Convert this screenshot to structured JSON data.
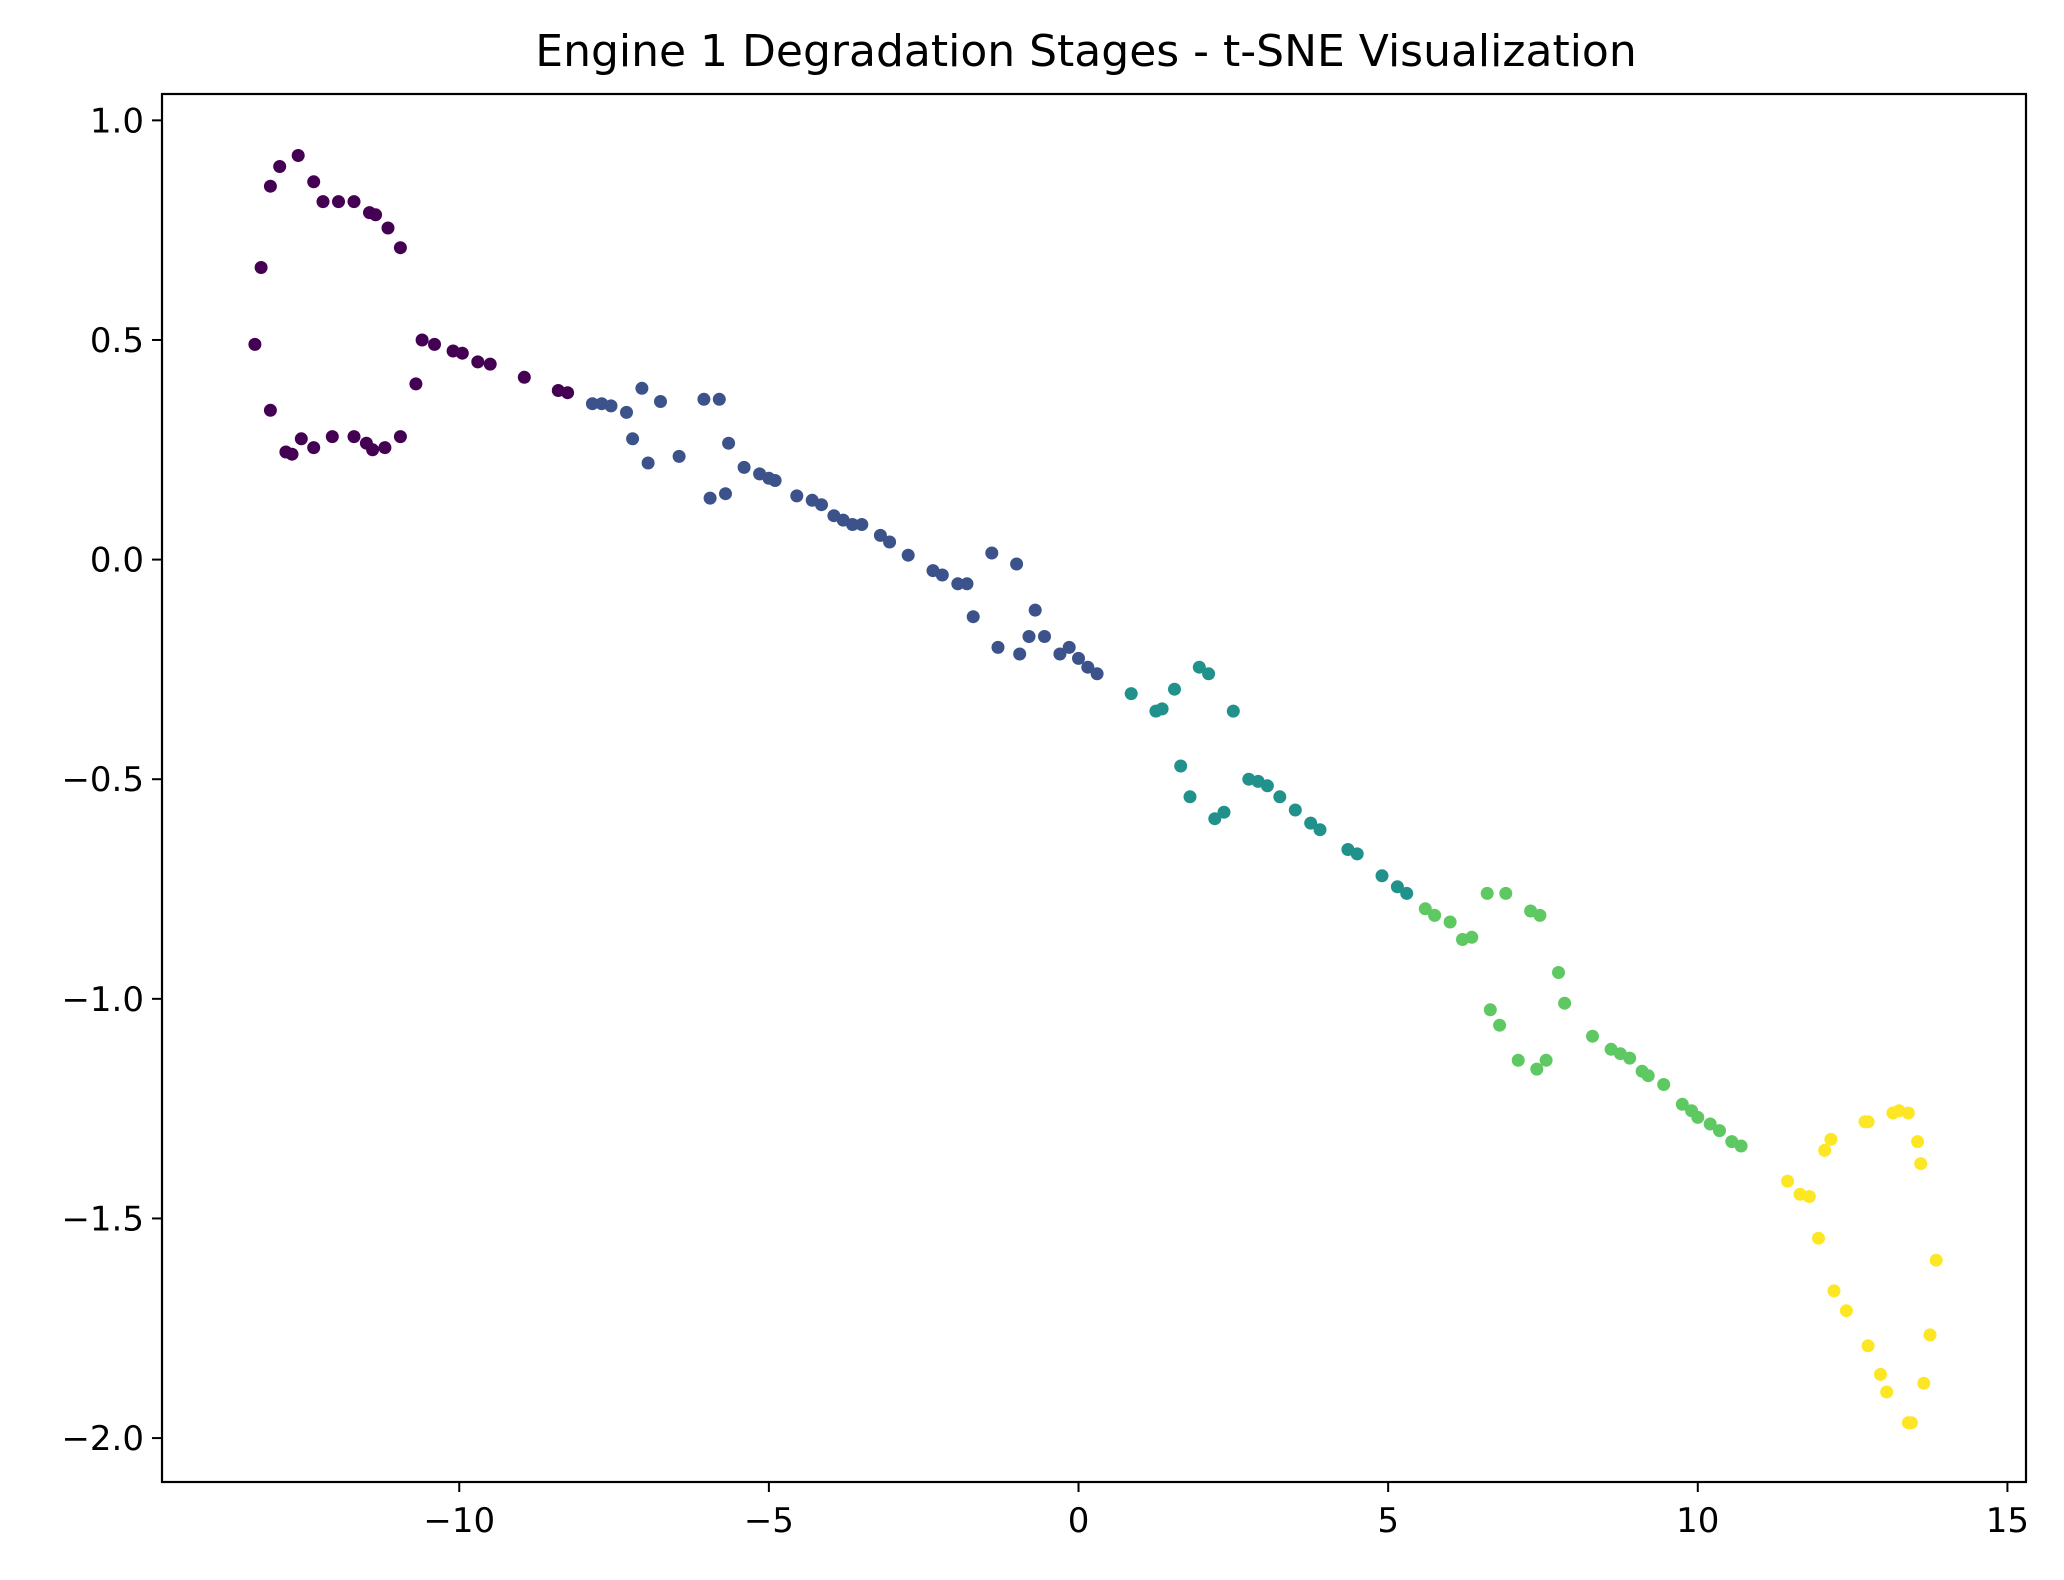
{
  "chart_data": {
    "type": "scatter",
    "title": "Engine 1 Degradation Stages - t-SNE Visualization",
    "xlabel": "",
    "ylabel": "",
    "xlim": [
      -14.8,
      15.3
    ],
    "ylim": [
      -2.1,
      1.06
    ],
    "x_ticks": [
      -10,
      -5,
      0,
      5,
      10,
      15
    ],
    "x_tick_labels": [
      "−10",
      "−5",
      "0",
      "5",
      "10",
      "15"
    ],
    "y_ticks": [
      1.0,
      0.5,
      0.0,
      -0.5,
      -1.0,
      -1.5,
      -2.0
    ],
    "y_tick_labels": [
      "1.0",
      "0.5",
      "0.0",
      "−0.5",
      "−1.0",
      "−1.5",
      "−2.0"
    ],
    "grid": false,
    "series": [
      {
        "color": "#440154",
        "points": [
          [
            -13.3,
            0.49
          ],
          [
            -13.2,
            0.665
          ],
          [
            -13.05,
            0.85
          ],
          [
            -12.9,
            0.895
          ],
          [
            -12.6,
            0.92
          ],
          [
            -12.35,
            0.86
          ],
          [
            -12.2,
            0.815
          ],
          [
            -11.95,
            0.815
          ],
          [
            -11.7,
            0.815
          ],
          [
            -11.45,
            0.79
          ],
          [
            -11.35,
            0.785
          ],
          [
            -11.15,
            0.755
          ],
          [
            -10.95,
            0.71
          ],
          [
            -13.05,
            0.34
          ],
          [
            -12.8,
            0.245
          ],
          [
            -12.7,
            0.24
          ],
          [
            -12.55,
            0.275
          ],
          [
            -12.35,
            0.255
          ],
          [
            -12.05,
            0.28
          ],
          [
            -11.7,
            0.28
          ],
          [
            -11.5,
            0.265
          ],
          [
            -11.4,
            0.25
          ],
          [
            -11.2,
            0.255
          ],
          [
            -10.95,
            0.28
          ],
          [
            -10.7,
            0.4
          ],
          [
            -10.6,
            0.5
          ],
          [
            -10.4,
            0.49
          ],
          [
            -10.1,
            0.475
          ],
          [
            -9.95,
            0.47
          ],
          [
            -9.7,
            0.45
          ],
          [
            -9.5,
            0.445
          ],
          [
            -8.95,
            0.415
          ],
          [
            -8.4,
            0.385
          ],
          [
            -8.25,
            0.38
          ]
        ]
      },
      {
        "color": "#3b528b",
        "points": [
          [
            -7.85,
            0.355
          ],
          [
            -7.7,
            0.355
          ],
          [
            -7.55,
            0.35
          ],
          [
            -7.3,
            0.335
          ],
          [
            -7.05,
            0.39
          ],
          [
            -6.75,
            0.36
          ],
          [
            -7.2,
            0.275
          ],
          [
            -6.95,
            0.22
          ],
          [
            -6.45,
            0.235
          ],
          [
            -6.05,
            0.365
          ],
          [
            -5.8,
            0.365
          ],
          [
            -5.65,
            0.265
          ],
          [
            -5.95,
            0.14
          ],
          [
            -5.7,
            0.15
          ],
          [
            -5.4,
            0.21
          ],
          [
            -5.15,
            0.195
          ],
          [
            -5.0,
            0.185
          ],
          [
            -4.9,
            0.18
          ],
          [
            -4.55,
            0.145
          ],
          [
            -4.3,
            0.135
          ],
          [
            -4.15,
            0.125
          ],
          [
            -3.95,
            0.1
          ],
          [
            -3.8,
            0.09
          ],
          [
            -3.65,
            0.08
          ],
          [
            -3.5,
            0.08
          ],
          [
            -3.2,
            0.055
          ],
          [
            -3.05,
            0.04
          ],
          [
            -2.75,
            0.01
          ],
          [
            -2.35,
            -0.025
          ],
          [
            -2.2,
            -0.035
          ],
          [
            -1.95,
            -0.055
          ],
          [
            -1.8,
            -0.055
          ],
          [
            -1.7,
            -0.13
          ],
          [
            -1.4,
            0.015
          ],
          [
            -1.0,
            -0.01
          ],
          [
            -1.3,
            -0.2
          ],
          [
            -0.95,
            -0.215
          ],
          [
            -0.8,
            -0.175
          ],
          [
            -0.7,
            -0.115
          ],
          [
            -0.55,
            -0.175
          ],
          [
            -0.3,
            -0.215
          ],
          [
            -0.15,
            -0.2
          ],
          [
            0.0,
            -0.225
          ],
          [
            0.15,
            -0.245
          ],
          [
            0.3,
            -0.26
          ]
        ]
      },
      {
        "color": "#21918c",
        "points": [
          [
            0.85,
            -0.305
          ],
          [
            1.25,
            -0.345
          ],
          [
            1.35,
            -0.34
          ],
          [
            1.55,
            -0.295
          ],
          [
            1.65,
            -0.47
          ],
          [
            1.8,
            -0.54
          ],
          [
            1.95,
            -0.245
          ],
          [
            2.1,
            -0.26
          ],
          [
            2.2,
            -0.59
          ],
          [
            2.35,
            -0.575
          ],
          [
            2.5,
            -0.345
          ],
          [
            2.75,
            -0.5
          ],
          [
            2.9,
            -0.505
          ],
          [
            3.05,
            -0.515
          ],
          [
            3.25,
            -0.54
          ],
          [
            3.5,
            -0.57
          ],
          [
            3.75,
            -0.6
          ],
          [
            3.9,
            -0.615
          ],
          [
            4.35,
            -0.66
          ],
          [
            4.5,
            -0.67
          ],
          [
            4.9,
            -0.72
          ],
          [
            5.15,
            -0.745
          ],
          [
            5.3,
            -0.76
          ]
        ]
      },
      {
        "color": "#5ec962",
        "points": [
          [
            5.6,
            -0.795
          ],
          [
            5.75,
            -0.81
          ],
          [
            6.0,
            -0.825
          ],
          [
            6.2,
            -0.865
          ],
          [
            6.35,
            -0.86
          ],
          [
            6.6,
            -0.76
          ],
          [
            6.9,
            -0.76
          ],
          [
            7.3,
            -0.8
          ],
          [
            7.45,
            -0.81
          ],
          [
            6.65,
            -1.025
          ],
          [
            6.8,
            -1.06
          ],
          [
            7.1,
            -1.14
          ],
          [
            7.4,
            -1.16
          ],
          [
            7.55,
            -1.14
          ],
          [
            7.75,
            -0.94
          ],
          [
            7.85,
            -1.01
          ],
          [
            8.3,
            -1.085
          ],
          [
            8.6,
            -1.115
          ],
          [
            8.75,
            -1.125
          ],
          [
            8.9,
            -1.135
          ],
          [
            9.1,
            -1.165
          ],
          [
            9.2,
            -1.175
          ],
          [
            9.45,
            -1.195
          ],
          [
            9.75,
            -1.24
          ],
          [
            9.9,
            -1.255
          ],
          [
            10.0,
            -1.27
          ],
          [
            10.2,
            -1.285
          ],
          [
            10.35,
            -1.3
          ],
          [
            10.55,
            -1.325
          ],
          [
            10.7,
            -1.335
          ]
        ]
      },
      {
        "color": "#fde725",
        "points": [
          [
            11.45,
            -1.415
          ],
          [
            11.65,
            -1.445
          ],
          [
            11.8,
            -1.45
          ],
          [
            11.95,
            -1.545
          ],
          [
            12.05,
            -1.345
          ],
          [
            12.15,
            -1.32
          ],
          [
            12.2,
            -1.665
          ],
          [
            12.4,
            -1.71
          ],
          [
            12.7,
            -1.28
          ],
          [
            12.75,
            -1.28
          ],
          [
            12.75,
            -1.79
          ],
          [
            12.95,
            -1.855
          ],
          [
            13.05,
            -1.895
          ],
          [
            13.15,
            -1.26
          ],
          [
            13.25,
            -1.255
          ],
          [
            13.4,
            -1.26
          ],
          [
            13.4,
            -1.965
          ],
          [
            13.45,
            -1.965
          ],
          [
            13.55,
            -1.325
          ],
          [
            13.6,
            -1.375
          ],
          [
            13.65,
            -1.875
          ],
          [
            13.75,
            -1.765
          ],
          [
            13.85,
            -1.595
          ]
        ]
      }
    ]
  }
}
